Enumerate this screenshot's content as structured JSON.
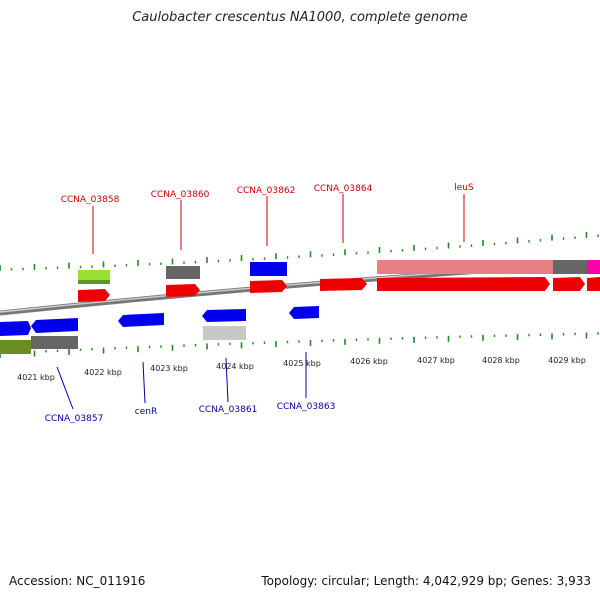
{
  "title": "Caulobacter crescentus NA1000, complete genome",
  "footer": {
    "accession": "Accession: NC_011916",
    "summary": "Topology: circular; Length: 4,042,929 bp; Genes: 3,933"
  },
  "colors": {
    "forward_cds": "#ff0000",
    "reverse_cds": "#0000ee",
    "forward_label": "#cc0000",
    "reverse_label": "#0000aa",
    "tick": "#228b22",
    "backbone": "#888888"
  },
  "kbp_labels": [
    "4021 kbp",
    "4022 kbp",
    "4023 kbp",
    "4024 kbp",
    "4025 kbp",
    "4026 kbp",
    "4027 kbp",
    "4028 kbp",
    "4029 kbp"
  ],
  "forward_labels": [
    "CCNA_03858",
    "CCNA_03860",
    "CCNA_03862",
    "CCNA_03864",
    "leuS"
  ],
  "reverse_labels": [
    "CCNA_03857",
    "cenR",
    "CCNA_03861",
    "CCNA_03863"
  ]
}
